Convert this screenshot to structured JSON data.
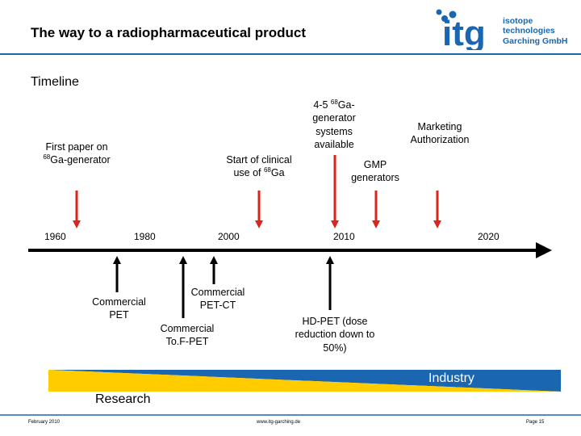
{
  "title": "The way to a radiopharmaceutical product",
  "section": "Timeline",
  "logo": {
    "mark": "itg",
    "line1": "isotope",
    "line2": "technologies",
    "line3": "Garching GmbH"
  },
  "colors": {
    "accent": "#1a66b0",
    "arrow_up": "#d9251c",
    "arrow_down": "#000000",
    "industry": "#1a66b0",
    "research": "#ffcc00"
  },
  "timeline": {
    "years": [
      "1960",
      "1980",
      "2000",
      "2010",
      "2020"
    ],
    "above": [
      {
        "pre": "First paper on",
        "sup": "68",
        "post": "Ga-generator"
      },
      {
        "pre": "Start of clinical",
        "line2": "use of ",
        "sup": "68",
        "post": "Ga"
      },
      {
        "line1_pre": "4-5 ",
        "sup": "68",
        "line1_post": "Ga-",
        "line2": "generator",
        "line3": "systems",
        "line4": "available"
      },
      {
        "line1": "GMP",
        "line2": "generators"
      },
      {
        "line1": "Marketing",
        "line2": "Authorization"
      }
    ],
    "below": [
      {
        "line1": "Commercial",
        "line2": "PET"
      },
      {
        "line1": "Commercial",
        "line2": "To.F-PET"
      },
      {
        "line1": "Commercial",
        "line2": "PET-CT"
      },
      {
        "line1": "HD-PET (dose",
        "line2": "reduction down to",
        "line3": "50%)"
      }
    ]
  },
  "industry_label": "Industry",
  "research_label": "Research",
  "footer": {
    "left": "February 2010",
    "mid": "www.itg-garching.de",
    "right": "Page 15"
  }
}
